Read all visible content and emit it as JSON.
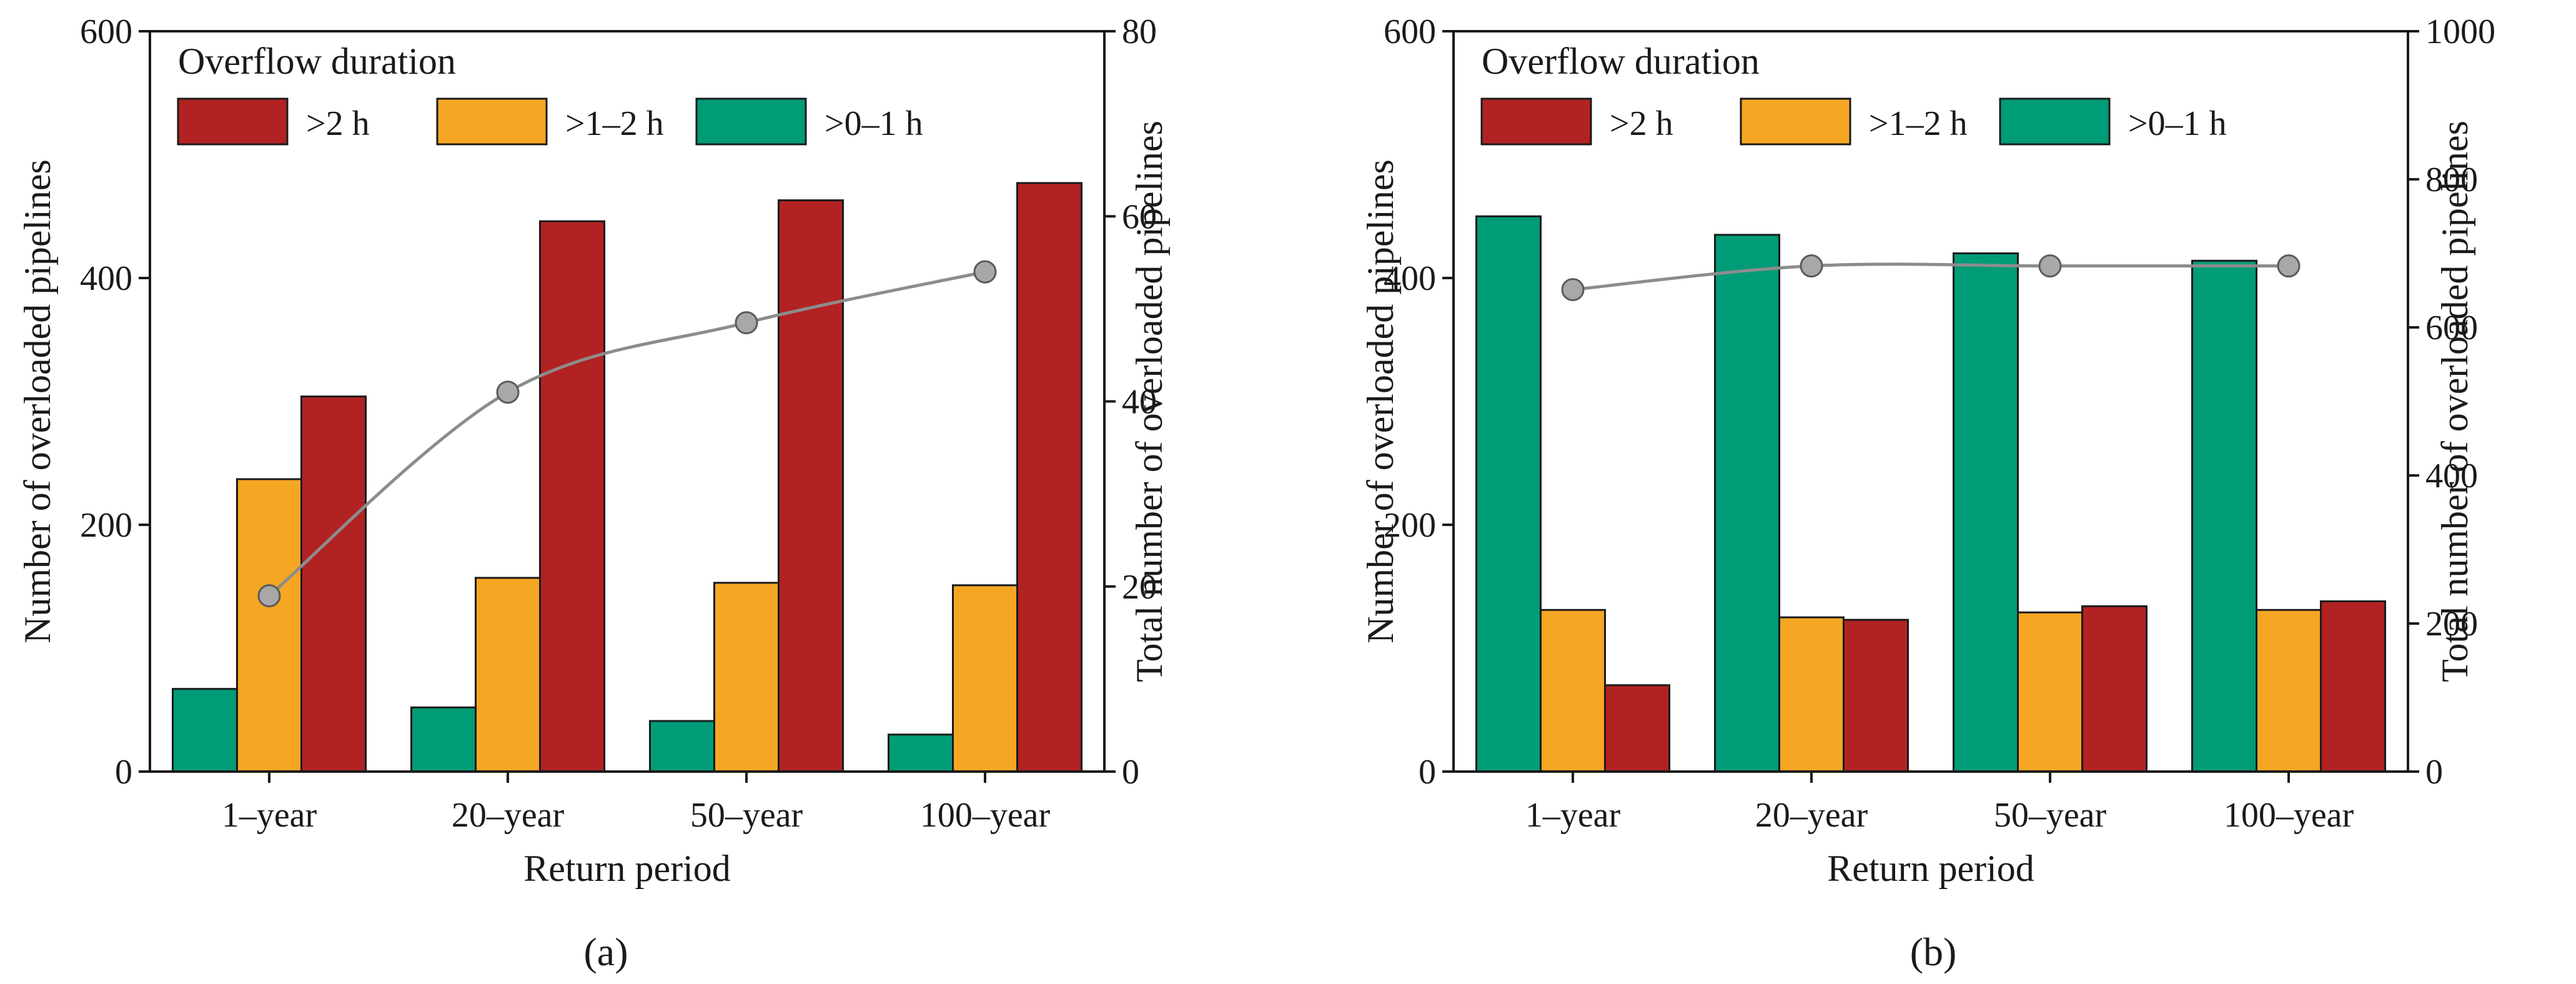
{
  "colors": {
    "gt2": "#b22222",
    "gt1_2": "#f5a623",
    "gt0_1": "#009b77",
    "line": "#8c8c8c",
    "axis": "#1a1a1a"
  },
  "chart_data": [
    {
      "type": "bar",
      "panel_label": "(a)",
      "title": "",
      "categories": [
        "1–year",
        "20–year",
        "50–year",
        "100–year"
      ],
      "xlabel": "Return period",
      "ylabel": "Number of overloaded pipelines",
      "y2label": "Total number of overloaded pipelines",
      "ylim": [
        0,
        600
      ],
      "y2lim": [
        0,
        80
      ],
      "yticks": [
        "0",
        "200",
        "400",
        "600"
      ],
      "y2ticks": [
        "0",
        "20",
        "40",
        "60",
        "80"
      ],
      "legend_title": "Overflow duration",
      "legend_placement": "top-left",
      "series": [
        {
          "name": ">0–1 h",
          "color_key": "gt0_1",
          "values": [
            67,
            52,
            41,
            30
          ]
        },
        {
          "name": ">1–2 h",
          "color_key": "gt1_2",
          "values": [
            237,
            157,
            153,
            151
          ]
        },
        {
          "name": ">2 h",
          "color_key": "gt2",
          "values": [
            304,
            446,
            463,
            477
          ]
        }
      ],
      "line_series": {
        "name": "Total",
        "axis": "right",
        "values": [
          19,
          41,
          48.5,
          54
        ]
      }
    },
    {
      "type": "bar",
      "panel_label": "(b)",
      "title": "",
      "categories": [
        "1–year",
        "20–year",
        "50–year",
        "100–year"
      ],
      "xlabel": "Return period",
      "ylabel": "Number of overloaded pipelines",
      "y2label": "Total number of overloaded pipelines",
      "ylim": [
        0,
        600
      ],
      "y2lim": [
        0,
        1000
      ],
      "yticks": [
        "0",
        "200",
        "400",
        "600"
      ],
      "y2ticks": [
        "0",
        "200",
        "400",
        "600",
        "800",
        "1000"
      ],
      "legend_title": "Overflow duration",
      "legend_placement": "top-left",
      "series": [
        {
          "name": ">0–1 h",
          "color_key": "gt0_1",
          "values": [
            450,
            435,
            420,
            414
          ]
        },
        {
          "name": ">1–2 h",
          "color_key": "gt1_2",
          "values": [
            131,
            125,
            129,
            131
          ]
        },
        {
          "name": ">2 h",
          "color_key": "gt2",
          "values": [
            70,
            123,
            134,
            138
          ]
        }
      ],
      "line_series": {
        "name": "Total",
        "axis": "right",
        "values": [
          651,
          683,
          683,
          683
        ]
      }
    }
  ]
}
